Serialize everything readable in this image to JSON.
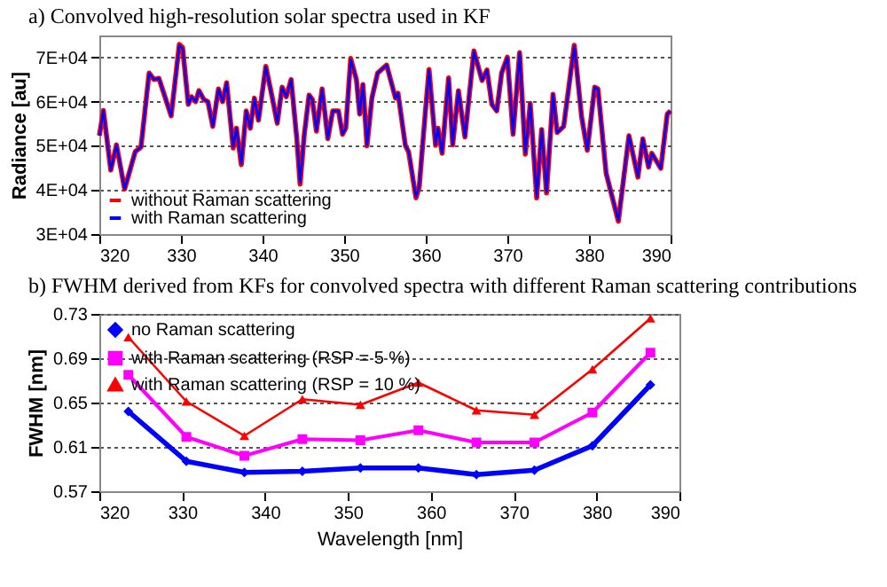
{
  "chart_data": [
    {
      "type": "line",
      "title": "a) Convolved high-resolution solar spectra used in KF",
      "ylabel": "Radiance [au]",
      "x": [
        320,
        320.5,
        321.4,
        322.1,
        323.1,
        324.4,
        325.1,
        326.1,
        326.7,
        327.3,
        328.8,
        329.8,
        330.2,
        330.9,
        331.3,
        331.8,
        332.2,
        332.8,
        333.3,
        333.9,
        334.6,
        335.1,
        335.6,
        336.4,
        336.8,
        337.4,
        338.0,
        338.5,
        339.0,
        339.5,
        340.4,
        341.2,
        341.8,
        342.4,
        342.9,
        343.5,
        344.2,
        344.6,
        345.1,
        345.7,
        346.1,
        346.6,
        347.3,
        348.0,
        348.6,
        349.3,
        349.8,
        350.2,
        350.8,
        351.5,
        351.9,
        352.3,
        352.8,
        353.4,
        354.1,
        355.2,
        356.3,
        356.6,
        357.5,
        357.9,
        358.8,
        359.2,
        359.9,
        360.4,
        361.2,
        361.5,
        362.0,
        362.8,
        363.3,
        364.0,
        364.8,
        365.9,
        366.9,
        367.5,
        368.1,
        368.7,
        369.3,
        370.0,
        370.7,
        371.5,
        372.2,
        372.8,
        373.6,
        374.2,
        374.8,
        375.6,
        376.1,
        376.9,
        378.2,
        379.1,
        379.8,
        380.7,
        381.1,
        382.1,
        383.6,
        384.9,
        386.0,
        386.6,
        387.3,
        387.7,
        388.8,
        389.6,
        390
      ],
      "series": [
        {
          "name": "without Raman scattering",
          "color": "#ff0000",
          "values": [
            52300,
            58000,
            44500,
            50200,
            40200,
            48700,
            49700,
            66500,
            65000,
            65300,
            56800,
            73000,
            72300,
            59400,
            61100,
            60000,
            62500,
            60500,
            60000,
            54400,
            62900,
            60000,
            64300,
            49500,
            54000,
            45700,
            57900,
            54000,
            60800,
            55800,
            68000,
            60800,
            55100,
            63300,
            61100,
            65000,
            51600,
            41300,
            52300,
            61500,
            60500,
            53300,
            62900,
            51600,
            57900,
            57900,
            52600,
            54000,
            69800,
            65000,
            57200,
            63900,
            50000,
            60800,
            66500,
            68300,
            60800,
            61900,
            50100,
            48600,
            38200,
            40700,
            56500,
            67300,
            50100,
            54000,
            48300,
            65400,
            50200,
            62500,
            52000,
            71500,
            64800,
            67200,
            59400,
            57900,
            66500,
            70100,
            52600,
            71100,
            48100,
            59600,
            38200,
            53700,
            39300,
            61700,
            53000,
            54400,
            72800,
            56500,
            49000,
            63300,
            62900,
            43800,
            32900,
            52300,
            42900,
            51600,
            45200,
            48300,
            44900,
            57200,
            57900
          ]
        },
        {
          "name": "with Raman scattering",
          "color": "#0000ff",
          "values": [
            52300,
            58000,
            44500,
            50200,
            40200,
            48700,
            49700,
            66500,
            65000,
            65300,
            56800,
            72800,
            72100,
            59400,
            61100,
            60000,
            62500,
            60500,
            60000,
            54400,
            62900,
            60000,
            64300,
            49700,
            54000,
            45900,
            57900,
            54000,
            60800,
            55800,
            67900,
            60800,
            55100,
            63300,
            61100,
            65000,
            51600,
            41600,
            52300,
            61500,
            60500,
            53400,
            62900,
            51600,
            57900,
            57900,
            52600,
            54000,
            69600,
            65000,
            57200,
            63900,
            50100,
            60800,
            66500,
            68300,
            60800,
            61900,
            50100,
            48700,
            38400,
            40900,
            56500,
            67200,
            50200,
            54000,
            48300,
            65300,
            50200,
            62500,
            52000,
            71400,
            64800,
            67200,
            59400,
            57900,
            66500,
            70000,
            52600,
            71000,
            48300,
            59600,
            38400,
            53700,
            39500,
            61700,
            53000,
            54400,
            72600,
            56500,
            49100,
            63300,
            62900,
            43800,
            33100,
            52300,
            43000,
            51600,
            45200,
            48300,
            44900,
            57200,
            57900
          ]
        }
      ],
      "xlim": [
        320,
        390
      ],
      "xticks": [
        320,
        330,
        340,
        350,
        360,
        370,
        380,
        390
      ],
      "ylim": [
        30000,
        75000
      ],
      "yticks": [
        {
          "value": 30000,
          "label": "3E+04"
        },
        {
          "value": 40000,
          "label": "4E+04"
        },
        {
          "value": 50000,
          "label": "5E+04"
        },
        {
          "value": 60000,
          "label": "6E+04"
        },
        {
          "value": 70000,
          "label": "7E+04"
        }
      ],
      "grid": "y",
      "legend": "bottom left",
      "marker": "none",
      "line_style": "solid"
    },
    {
      "type": "line",
      "title": "b) FWHM derived from KFs for convolved spectra with different Raman scattering contributions",
      "xlabel": "Wavelength [nm]",
      "ylabel": "FWHM [nm]",
      "x": [
        323.5,
        330.5,
        337.5,
        344.5,
        351.5,
        358.5,
        365.5,
        372.5,
        379.5,
        386.5
      ],
      "series": [
        {
          "name": "no Raman scattering",
          "color": "#0000ff",
          "marker": "diamond",
          "values": [
            0.642,
            0.597,
            0.587,
            0.588,
            0.591,
            0.591,
            0.585,
            0.589,
            0.611,
            0.666
          ]
        },
        {
          "name": "with Raman scattering (RSP = 5 %)",
          "color": "#ff00ff",
          "marker": "square",
          "values": [
            0.675,
            0.619,
            0.602,
            0.617,
            0.616,
            0.625,
            0.614,
            0.614,
            0.641,
            0.695
          ]
        },
        {
          "name": "with Raman scattering (RSP = 10 %)",
          "color": "#ff0000",
          "marker": "triangle",
          "values": [
            0.709,
            0.651,
            0.62,
            0.653,
            0.648,
            0.668,
            0.643,
            0.639,
            0.68,
            0.726
          ]
        }
      ],
      "xlim": [
        320,
        390
      ],
      "xticks": [
        320,
        330,
        340,
        350,
        360,
        370,
        380,
        390
      ],
      "ylim": [
        0.57,
        0.73
      ],
      "yticks": [
        0.57,
        0.61,
        0.65,
        0.69,
        0.73
      ],
      "grid": "y",
      "legend": "top left",
      "line_style": "solid"
    }
  ]
}
